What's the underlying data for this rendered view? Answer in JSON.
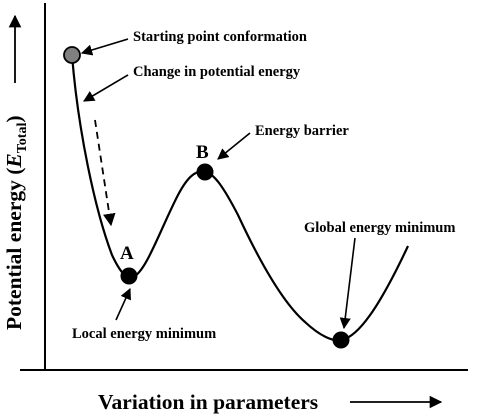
{
  "diagram": {
    "annotations": {
      "starting_point": "Starting point conformation",
      "change_energy": "Change in potential energy",
      "energy_barrier": "Energy barrier",
      "global_minimum": "Global energy minimum",
      "local_minimum": "Local energy minimum"
    },
    "point_labels": {
      "a": "A",
      "b": "B"
    },
    "axes": {
      "x_title": "Variation in parameters",
      "y_title_main": "Potential energy (",
      "y_title_var": "E",
      "y_title_sub": "Total",
      "y_title_close": ")"
    },
    "colors": {
      "curve": "#000000",
      "start_point": "#808080",
      "minima_points": "#000000",
      "background": "#ffffff"
    }
  }
}
